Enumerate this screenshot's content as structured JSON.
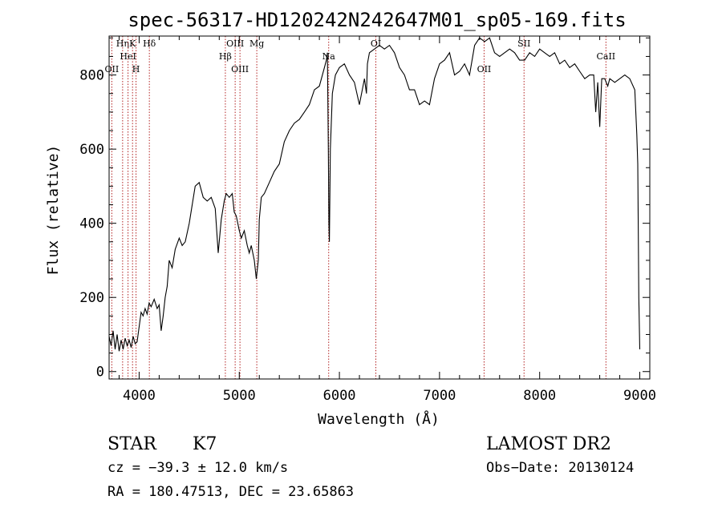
{
  "chart_data": {
    "type": "line",
    "title": "spec-56317-HD120242N242647M01_sp05-169.fits",
    "xlabel": "Wavelength (Å)",
    "ylabel": "Flux (relative)",
    "xlim": [
      3700,
      9100
    ],
    "ylim": [
      -20,
      905
    ],
    "x_ticks": [
      4000,
      5000,
      6000,
      7000,
      8000,
      9000
    ],
    "y_ticks": [
      0,
      200,
      400,
      600,
      800
    ],
    "grid": false,
    "series": [
      {
        "x": [
          3700,
          3720,
          3740,
          3760,
          3780,
          3800,
          3820,
          3840,
          3860,
          3880,
          3900,
          3920,
          3940,
          3960,
          3980,
          4000,
          4020,
          4040,
          4060,
          4080,
          4100,
          4120,
          4150,
          4180,
          4200,
          4220,
          4240,
          4260,
          4280,
          4300,
          4330,
          4360,
          4400,
          4430,
          4460,
          4500,
          4530,
          4560,
          4600,
          4640,
          4680,
          4720,
          4760,
          4790,
          4820,
          4850,
          4870,
          4900,
          4930,
          4950,
          4970,
          5000,
          5020,
          5050,
          5080,
          5100,
          5120,
          5150,
          5170,
          5190,
          5200,
          5220,
          5250,
          5300,
          5350,
          5400,
          5450,
          5500,
          5550,
          5600,
          5650,
          5700,
          5750,
          5800,
          5850,
          5870,
          5880,
          5890,
          5895,
          5900,
          5910,
          5930,
          5960,
          6000,
          6050,
          6100,
          6150,
          6200,
          6250,
          6270,
          6280,
          6300,
          6350,
          6400,
          6450,
          6500,
          6550,
          6600,
          6650,
          6700,
          6750,
          6800,
          6850,
          6900,
          6950,
          7000,
          7050,
          7100,
          7150,
          7200,
          7250,
          7300,
          7350,
          7400,
          7450,
          7500,
          7550,
          7600,
          7650,
          7700,
          7750,
          7800,
          7850,
          7900,
          7950,
          8000,
          8050,
          8100,
          8150,
          8200,
          8250,
          8300,
          8350,
          8400,
          8450,
          8500,
          8540,
          8560,
          8580,
          8600,
          8620,
          8650,
          8680,
          8700,
          8750,
          8800,
          8850,
          8900,
          8950,
          8970,
          8980,
          8990,
          9000
        ],
        "y": [
          95,
          70,
          110,
          60,
          100,
          55,
          85,
          60,
          90,
          70,
          85,
          65,
          95,
          75,
          80,
          120,
          160,
          150,
          170,
          155,
          185,
          175,
          195,
          170,
          180,
          110,
          150,
          200,
          230,
          300,
          280,
          330,
          360,
          340,
          350,
          400,
          450,
          500,
          510,
          470,
          460,
          470,
          440,
          320,
          410,
          460,
          480,
          470,
          480,
          430,
          420,
          380,
          360,
          380,
          340,
          320,
          340,
          300,
          250,
          300,
          410,
          470,
          480,
          510,
          540,
          560,
          620,
          650,
          670,
          680,
          700,
          720,
          760,
          770,
          820,
          840,
          860,
          600,
          400,
          350,
          600,
          750,
          800,
          820,
          830,
          800,
          780,
          720,
          790,
          750,
          830,
          860,
          870,
          880,
          870,
          880,
          860,
          820,
          800,
          760,
          760,
          720,
          730,
          720,
          790,
          830,
          840,
          860,
          800,
          810,
          830,
          800,
          880,
          900,
          890,
          900,
          860,
          850,
          860,
          870,
          860,
          840,
          840,
          860,
          850,
          870,
          860,
          850,
          860,
          830,
          840,
          820,
          830,
          810,
          790,
          800,
          800,
          700,
          780,
          660,
          790,
          790,
          770,
          790,
          780,
          790,
          800,
          790,
          760,
          640,
          560,
          200,
          60
        ]
      }
    ],
    "lines": [
      {
        "label": "OII",
        "x": 3727
      },
      {
        "label": "Hη",
        "x": 3835
      },
      {
        "label": "HeI",
        "x": 3889
      },
      {
        "label": "K",
        "x": 3934
      },
      {
        "label": "H",
        "x": 3969
      },
      {
        "label": "Hδ",
        "x": 4102
      },
      {
        "label": "Hβ",
        "x": 4861
      },
      {
        "label": "OIII",
        "x": 4959
      },
      {
        "label": "OIII",
        "x": 5007
      },
      {
        "label": "Mg",
        "x": 5175
      },
      {
        "label": "Na",
        "x": 5893
      },
      {
        "label": "OI",
        "x": 6364
      },
      {
        "label": "OII",
        "x": 7445
      },
      {
        "label": "SII",
        "x": 7844
      },
      {
        "label": "CaII",
        "x": 8662
      }
    ],
    "line_color": "#b22222"
  },
  "footer": {
    "object_class": "STAR",
    "subclass": "K7",
    "survey": "LAMOST DR2",
    "redshift": "cz = −39.3 ± 12.0 km/s",
    "obs_date": "Obs−Date: 20130124",
    "coords": "RA = 180.47513, DEC =  23.65863"
  }
}
